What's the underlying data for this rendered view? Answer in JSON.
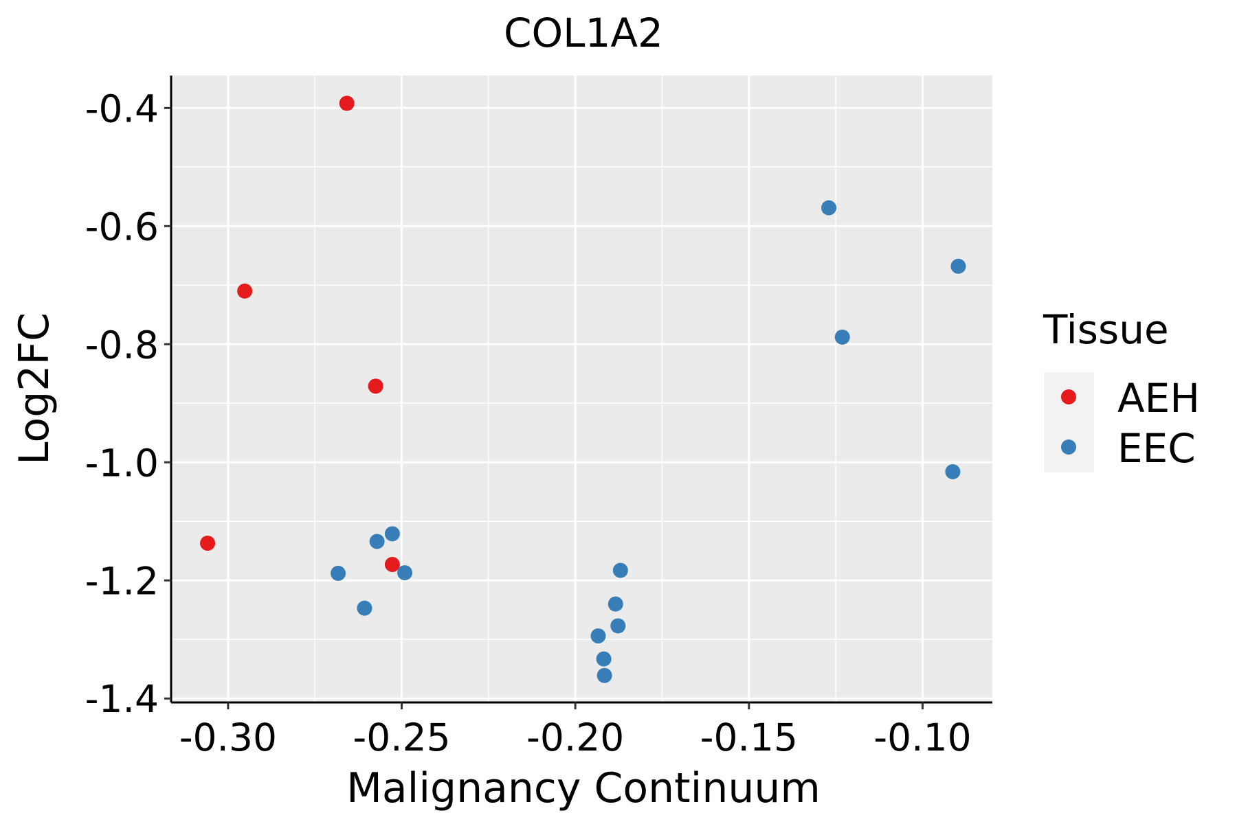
{
  "chart_data": {
    "type": "scatter",
    "title": "COL1A2",
    "xlabel": "Malignancy Continuum",
    "ylabel": "Log2FC",
    "xlim": [
      -0.3164,
      -0.0799
    ],
    "ylim": [
      -1.4067,
      -0.345
    ],
    "xticks": [
      -0.3,
      -0.25,
      -0.2,
      -0.15,
      -0.1
    ],
    "xtick_labels": [
      "-0.30",
      "-0.25",
      "-0.20",
      "-0.15",
      "-0.10"
    ],
    "yticks": [
      -0.4,
      -0.6,
      -0.8,
      -1.0,
      -1.2,
      -1.4
    ],
    "ytick_labels": [
      "-0.4",
      "-0.6",
      "-0.8",
      "-1.0",
      "-1.2",
      "-1.4"
    ],
    "grid": true,
    "legend": {
      "title": "Tissue",
      "placement": "right"
    },
    "series": [
      {
        "name": "AEH",
        "color": "#E41A1C",
        "x": [
          -0.2658,
          -0.2952,
          -0.2575,
          -0.3059,
          -0.2527
        ],
        "y": [
          -0.392,
          -0.71,
          -0.871,
          -1.137,
          -1.173
        ]
      },
      {
        "name": "EEC",
        "color": "#377EB8",
        "x": [
          -0.127,
          -0.0897,
          -0.1231,
          -0.0913,
          -0.2571,
          -0.2527,
          -0.2683,
          -0.2491,
          -0.2607,
          -0.187,
          -0.1884,
          -0.1877,
          -0.1934,
          -0.1918,
          -0.1916
        ],
        "y": [
          -0.569,
          -0.668,
          -0.788,
          -1.016,
          -1.134,
          -1.121,
          -1.188,
          -1.187,
          -1.247,
          -1.183,
          -1.24,
          -1.277,
          -1.294,
          -1.333,
          -1.361
        ]
      }
    ]
  }
}
